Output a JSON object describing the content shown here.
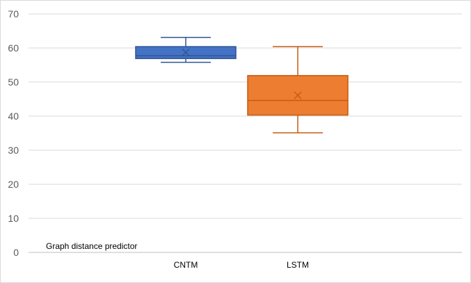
{
  "chart_data": {
    "type": "box",
    "title": "",
    "xlabel": "",
    "ylabel": "",
    "ylim": [
      0,
      70
    ],
    "y_ticks": [
      0,
      10,
      20,
      30,
      40,
      50,
      60,
      70
    ],
    "grid": true,
    "annotation": "Graph distance predictor",
    "categories": [
      "CNTM",
      "LSTM"
    ],
    "series": [
      {
        "category": "CNTM",
        "color": "#4472C4",
        "edge_color": "#2F5597",
        "min": 55.8,
        "q1": 56.9,
        "median": 57.7,
        "q3": 60.4,
        "max": 63.1,
        "mean": 58.7
      },
      {
        "category": "LSTM",
        "color": "#ED7D31",
        "edge_color": "#C55A11",
        "min": 35.1,
        "q1": 40.3,
        "median": 44.6,
        "q3": 51.9,
        "max": 60.4,
        "mean": 46.1
      }
    ]
  }
}
